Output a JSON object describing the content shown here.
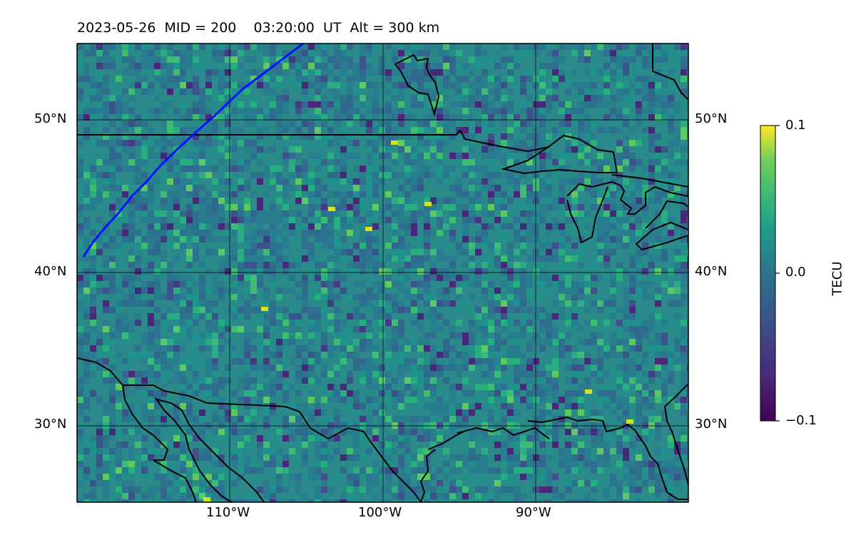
{
  "title": "2023-05-26  MID = 200    03:20:00  UT  Alt = 300 km",
  "map": {
    "lat_labels": [
      "50°N",
      "40°N",
      "30°N"
    ],
    "lon_labels": [
      "110°W",
      "100°W",
      "90°W"
    ],
    "extent": {
      "lon": [
        -120,
        -80
      ],
      "lat": [
        25,
        55
      ]
    },
    "grid": true
  },
  "colorbar": {
    "label": "TECU",
    "ticks": [
      "0.1",
      "0.0",
      "−0.1"
    ],
    "range": [
      -0.1,
      0.1
    ],
    "colormap": "viridis"
  },
  "colors": {
    "background_field": "#2a8a8a",
    "coastlines": "#000000",
    "terminator": "#0015ff"
  }
}
